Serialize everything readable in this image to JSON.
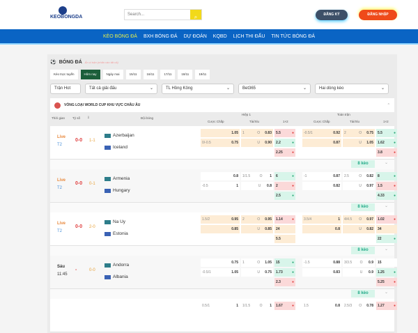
{
  "header": {
    "logo_text": "KEOBONGDA",
    "search_placeholder": "Search...",
    "register": "ĐĂNG KÝ",
    "login": "ĐĂNG NHẬP"
  },
  "nav": [
    "KÈO BÓNG ĐÁ",
    "BXH BÓNG ĐÁ",
    "DỰ ĐOÁN",
    "KQBD",
    "LỊCH THI ĐẤU",
    "TIN TỨC BÓNG ĐÁ"
  ],
  "section": {
    "title": "BÓNG ĐÁ",
    "subtitle": "Ấn vị trận (nhấn vào tất cả)"
  },
  "dates": [
    "Kèo trực tuyến",
    "Hôm nay",
    "Ngày mai",
    "15/11",
    "16/11",
    "17/11",
    "18/11",
    "19/11"
  ],
  "filters": {
    "hot": "Trận Hot",
    "league": "Tất cả giải đấu",
    "odds_type": "TL Hồng Kông",
    "bookmaker": "Bet365",
    "lines": "Hai dòng kèo"
  },
  "league": "VÒNG LOẠI WORLD CUP KHU VỰC CHÂU ÂU",
  "columns": {
    "time": "Thời gian",
    "score": "Tỷ số",
    "teams": "Đội bóng",
    "h1": "Hiệp 1",
    "ft": "Toàn trận",
    "hdp": "Cược Chấp",
    "ou": "Tài/Xỉu",
    "x12": "1×2"
  },
  "more_label": "8 kèo",
  "colors": {
    "up": "#d8f5ea",
    "down": "#fbd9d9",
    "accent": "#0a64c4"
  },
  "matches": [
    {
      "status": "Live",
      "sub": "T2",
      "score": "0-0",
      "ht": "1-1",
      "home": "Azerbaijan",
      "away": "Iceland",
      "hl": true,
      "rows": [
        [
          [
            "",
            "1.05",
            "1",
            "O",
            "0.83",
            "5.5",
            "down"
          ],
          [
            "-0.5/1",
            "0.92",
            "2",
            "O",
            "0.75",
            "5.5",
            "up"
          ]
        ],
        [
          [
            "0/-0.5",
            "0.75",
            "",
            "U",
            "0.90",
            "2.2",
            "up"
          ],
          [
            "",
            "0.87",
            "",
            "U",
            "1.05",
            "1.62",
            "up"
          ]
        ],
        [
          [
            "",
            "",
            "",
            "",
            "",
            "2.25",
            "down"
          ],
          [
            "",
            "",
            "",
            "",
            "",
            "3.8",
            "down"
          ]
        ]
      ]
    },
    {
      "status": "Live",
      "sub": "T2",
      "score": "0-0",
      "ht": "0-1",
      "home": "Armenia",
      "away": "Hungary",
      "hl": false,
      "rows": [
        [
          [
            "",
            "0.8",
            "1/1.5",
            "O",
            "1",
            "6",
            "up"
          ],
          [
            "-1",
            "0.87",
            "2.5",
            "O",
            "0.82",
            "8",
            "up"
          ]
        ],
        [
          [
            "-0.5",
            "1",
            "",
            "U",
            "0.8",
            "2",
            "down"
          ],
          [
            "",
            "0.82",
            "",
            "U",
            "0.97",
            "1.5",
            "down"
          ]
        ],
        [
          [
            "",
            "",
            "",
            "",
            "",
            "2.5",
            "up"
          ],
          [
            "",
            "",
            "",
            "",
            "",
            "4.33",
            "up"
          ]
        ]
      ]
    },
    {
      "status": "Live",
      "sub": "T2",
      "score": "0-0",
      "ht": "2-0",
      "home": "Na Uy",
      "away": "Estonia",
      "hl": true,
      "rows": [
        [
          [
            "1.5/2",
            "0.95",
            "2",
            "O",
            "0.95",
            "1.14",
            "down"
          ],
          [
            "3.5/4",
            "1",
            "4/4.5",
            "O",
            "0.97",
            "1.02",
            "down"
          ]
        ],
        [
          [
            "",
            "0.85",
            "",
            "U",
            "0.85",
            "24",
            "none"
          ],
          [
            "",
            "0.8",
            "",
            "U",
            "0.82",
            "34",
            "none"
          ]
        ],
        [
          [
            "",
            "",
            "",
            "",
            "",
            "5.5",
            "none"
          ],
          [
            "",
            "",
            "",
            "",
            "",
            "22",
            "up"
          ]
        ]
      ]
    },
    {
      "status": "Sáu",
      "sub": "11:45",
      "score": "-",
      "ht": "0-0",
      "home": "Andorra",
      "away": "Albania",
      "hl": false,
      "rows": [
        [
          [
            "",
            "0.75",
            "1",
            "O",
            "1.05",
            "15",
            "up"
          ],
          [
            "-1.5",
            "0.88",
            "3/3.5",
            "O",
            "0.9",
            "15",
            "wh"
          ]
        ],
        [
          [
            "-0.5/1",
            "1.05",
            "",
            "U",
            "0.75",
            "1.73",
            "up"
          ],
          [
            "",
            "0.83",
            "",
            "U",
            "0.9",
            "1.25",
            "up"
          ]
        ],
        [
          [
            "",
            "",
            "",
            "",
            "",
            "2.3",
            "down"
          ],
          [
            "",
            "",
            "",
            "",
            "",
            "5.25",
            "down"
          ]
        ]
      ]
    },
    {
      "status": "",
      "sub": "",
      "score": "",
      "ht": "",
      "home": "",
      "away": "",
      "hl": false,
      "rows": [
        [
          [
            "0.5/1",
            "1",
            "1/1.5",
            "O",
            "1",
            "1.67",
            "down"
          ],
          [
            "1.5",
            "0.8",
            "2.5/3",
            "O",
            "0.78",
            "1.27",
            "down"
          ]
        ]
      ]
    }
  ]
}
